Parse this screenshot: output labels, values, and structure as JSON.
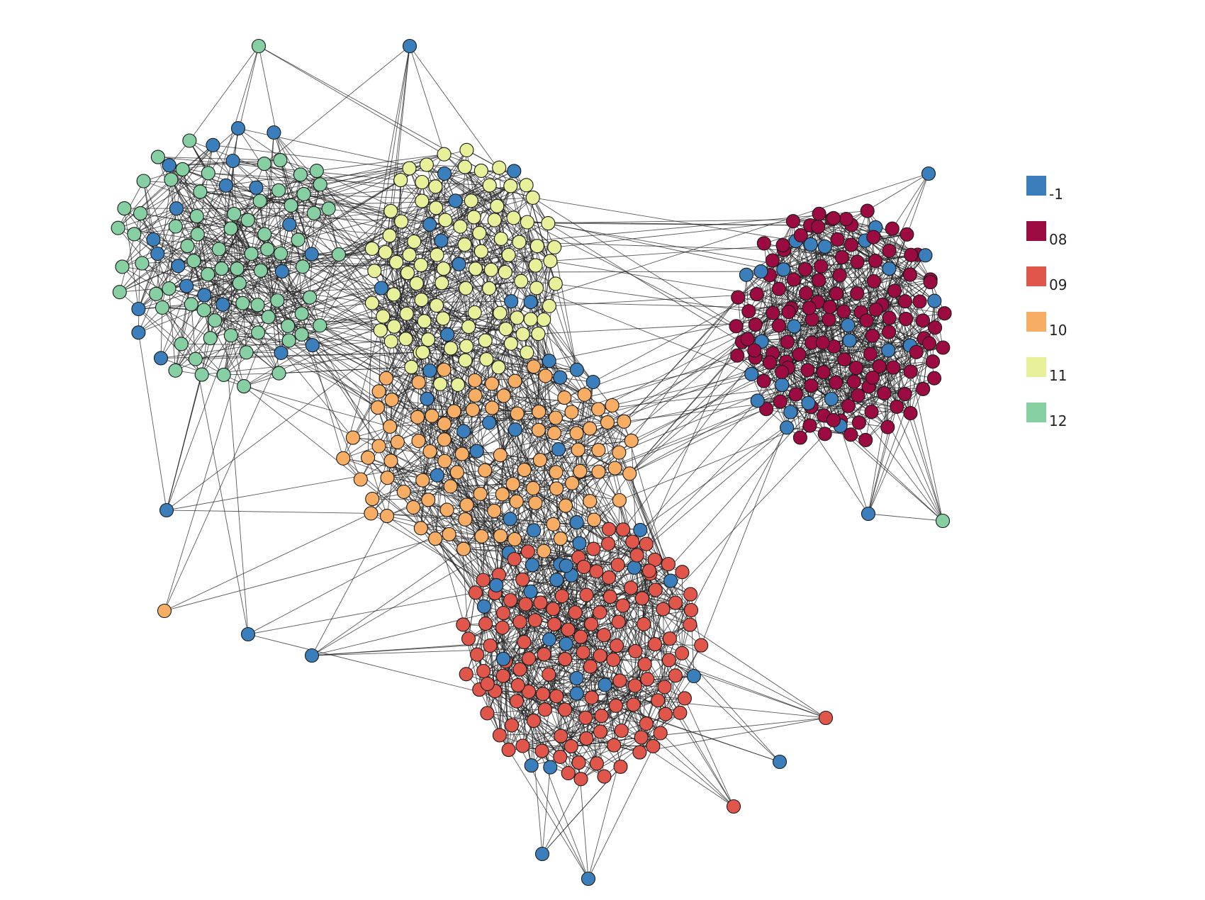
{
  "legend": {
    "items": [
      {
        "label": "-1",
        "color": "#3a7fbc"
      },
      {
        "label": "08",
        "color": "#9b0a41"
      },
      {
        "label": "09",
        "color": "#e0564a"
      },
      {
        "label": "10",
        "color": "#f7ad63"
      },
      {
        "label": "11",
        "color": "#e8f09a"
      },
      {
        "label": "12",
        "color": "#85cfa2"
      }
    ]
  },
  "graph": {
    "node_stroke": "#1a1a1a",
    "edge_color": "#222222"
  }
}
